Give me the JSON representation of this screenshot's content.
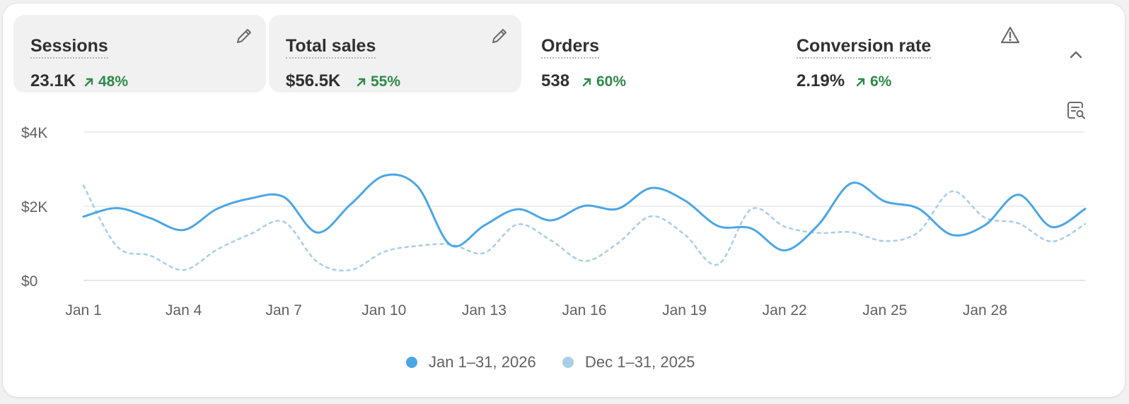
{
  "metrics": [
    {
      "label": "Sessions",
      "value": "23.1K",
      "change": "48%",
      "active": true,
      "icon": "pencil-icon"
    },
    {
      "label": "Total sales",
      "value": "$56.5K",
      "change": "55%",
      "active": true,
      "icon": "pencil-icon"
    },
    {
      "label": "Orders",
      "value": "538",
      "change": "60%",
      "active": false
    },
    {
      "label": "Conversion rate",
      "value": "2.19%",
      "change": "6%",
      "active": false,
      "icon": "warning-icon"
    }
  ],
  "controls": {
    "collapse_icon": "chevron-up-icon",
    "analysis_icon": "chart-search-icon"
  },
  "colors": {
    "primary": "#4ba6e6",
    "comparison": "#a9cfe9",
    "positive": "#2e8a4a",
    "grid": "#e3e3e3",
    "text": "#616161"
  },
  "chart_data": {
    "type": "line",
    "x": [
      "Jan 1",
      "Jan 2",
      "Jan 3",
      "Jan 4",
      "Jan 5",
      "Jan 6",
      "Jan 7",
      "Jan 8",
      "Jan 9",
      "Jan 10",
      "Jan 11",
      "Jan 12",
      "Jan 13",
      "Jan 14",
      "Jan 15",
      "Jan 16",
      "Jan 17",
      "Jan 18",
      "Jan 19",
      "Jan 20",
      "Jan 21",
      "Jan 22",
      "Jan 23",
      "Jan 24",
      "Jan 25",
      "Jan 26",
      "Jan 27",
      "Jan 28",
      "Jan 29",
      "Jan 30",
      "Jan 31"
    ],
    "x_ticks": [
      "Jan 1",
      "Jan 4",
      "Jan 7",
      "Jan 10",
      "Jan 13",
      "Jan 16",
      "Jan 19",
      "Jan 22",
      "Jan 25",
      "Jan 28"
    ],
    "y_ticks": [
      {
        "value": 0,
        "label": "$0"
      },
      {
        "value": 2000,
        "label": "$2K"
      },
      {
        "value": 4000,
        "label": "$4K"
      }
    ],
    "ylim": [
      0,
      4000
    ],
    "grid": true,
    "legend_position": "bottom-center",
    "series": [
      {
        "name": "Jan 1–31, 2026",
        "style": "solid",
        "values": [
          1720,
          1950,
          1680,
          1360,
          1930,
          2210,
          2250,
          1290,
          2050,
          2820,
          2540,
          950,
          1480,
          1920,
          1620,
          2010,
          1930,
          2490,
          2160,
          1470,
          1400,
          810,
          1490,
          2620,
          2130,
          1940,
          1230,
          1490,
          2310,
          1440,
          1930
        ]
      },
      {
        "name": "Dec 1–31, 2025",
        "style": "dashed",
        "values": [
          2560,
          920,
          670,
          280,
          830,
          1250,
          1580,
          500,
          280,
          770,
          930,
          970,
          740,
          1510,
          1080,
          520,
          1000,
          1730,
          1240,
          430,
          1920,
          1450,
          1280,
          1300,
          1060,
          1300,
          2400,
          1690,
          1540,
          1050,
          1520
        ]
      }
    ]
  }
}
